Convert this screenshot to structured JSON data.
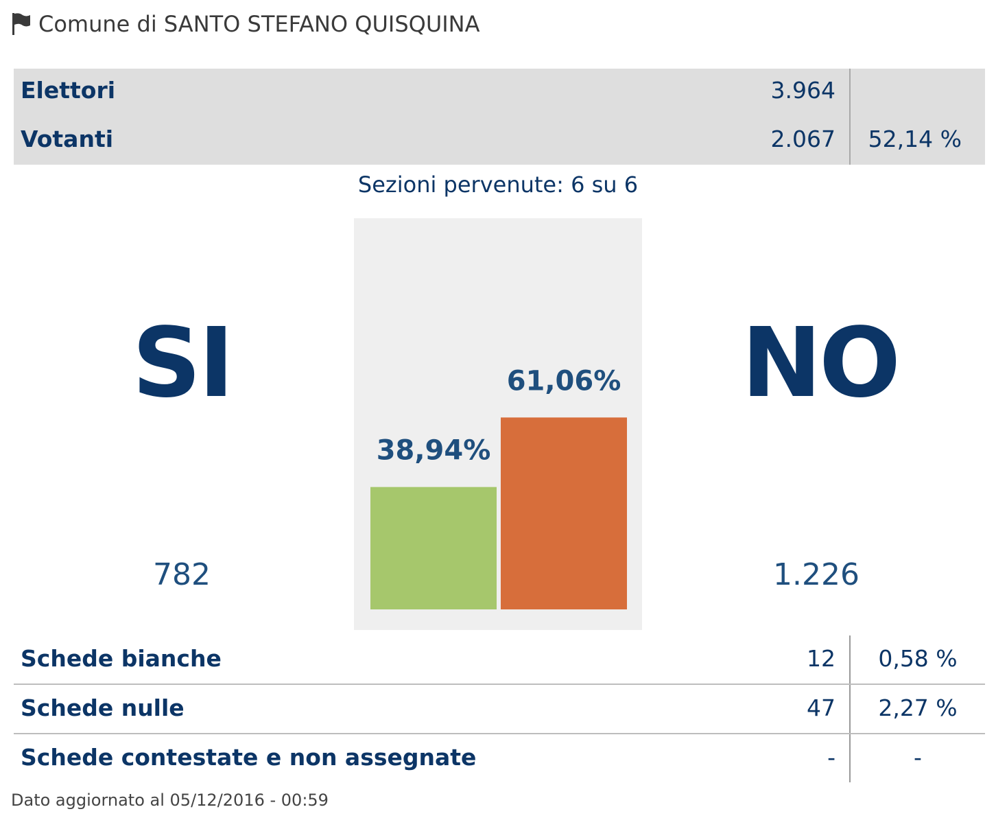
{
  "header": {
    "title": "Comune di SANTO STEFANO QUISQUINA"
  },
  "turnout": {
    "elettori_label": "Elettori",
    "elettori_value": "3.964",
    "votanti_label": "Votanti",
    "votanti_value": "2.067",
    "votanti_pct": "52,14 %"
  },
  "sezioni": "Sezioni pervenute: 6 su 6",
  "results": {
    "si_label": "SI",
    "si_votes": "782",
    "no_label": "NO",
    "no_votes": "1.226"
  },
  "chart_data": {
    "type": "bar",
    "categories": [
      "SI",
      "NO"
    ],
    "values": [
      38.94,
      61.06
    ],
    "value_labels": [
      "38,94%",
      "61,06%"
    ],
    "colors": [
      "#a6c76c",
      "#d76e3b"
    ],
    "ylim": [
      0,
      100
    ]
  },
  "schede": [
    {
      "label": "Schede bianche",
      "value": "12",
      "pct": "0,58 %"
    },
    {
      "label": "Schede nulle",
      "value": "47",
      "pct": "2,27 %"
    },
    {
      "label": "Schede contestate e non assegnate",
      "value": "-",
      "pct": "-"
    }
  ],
  "footer": "Dato aggiornato al 05/12/2016 - 00:59",
  "colors": {
    "primary": "#0c3566",
    "si_bar": "#a6c76c",
    "no_bar": "#d76e3b"
  }
}
